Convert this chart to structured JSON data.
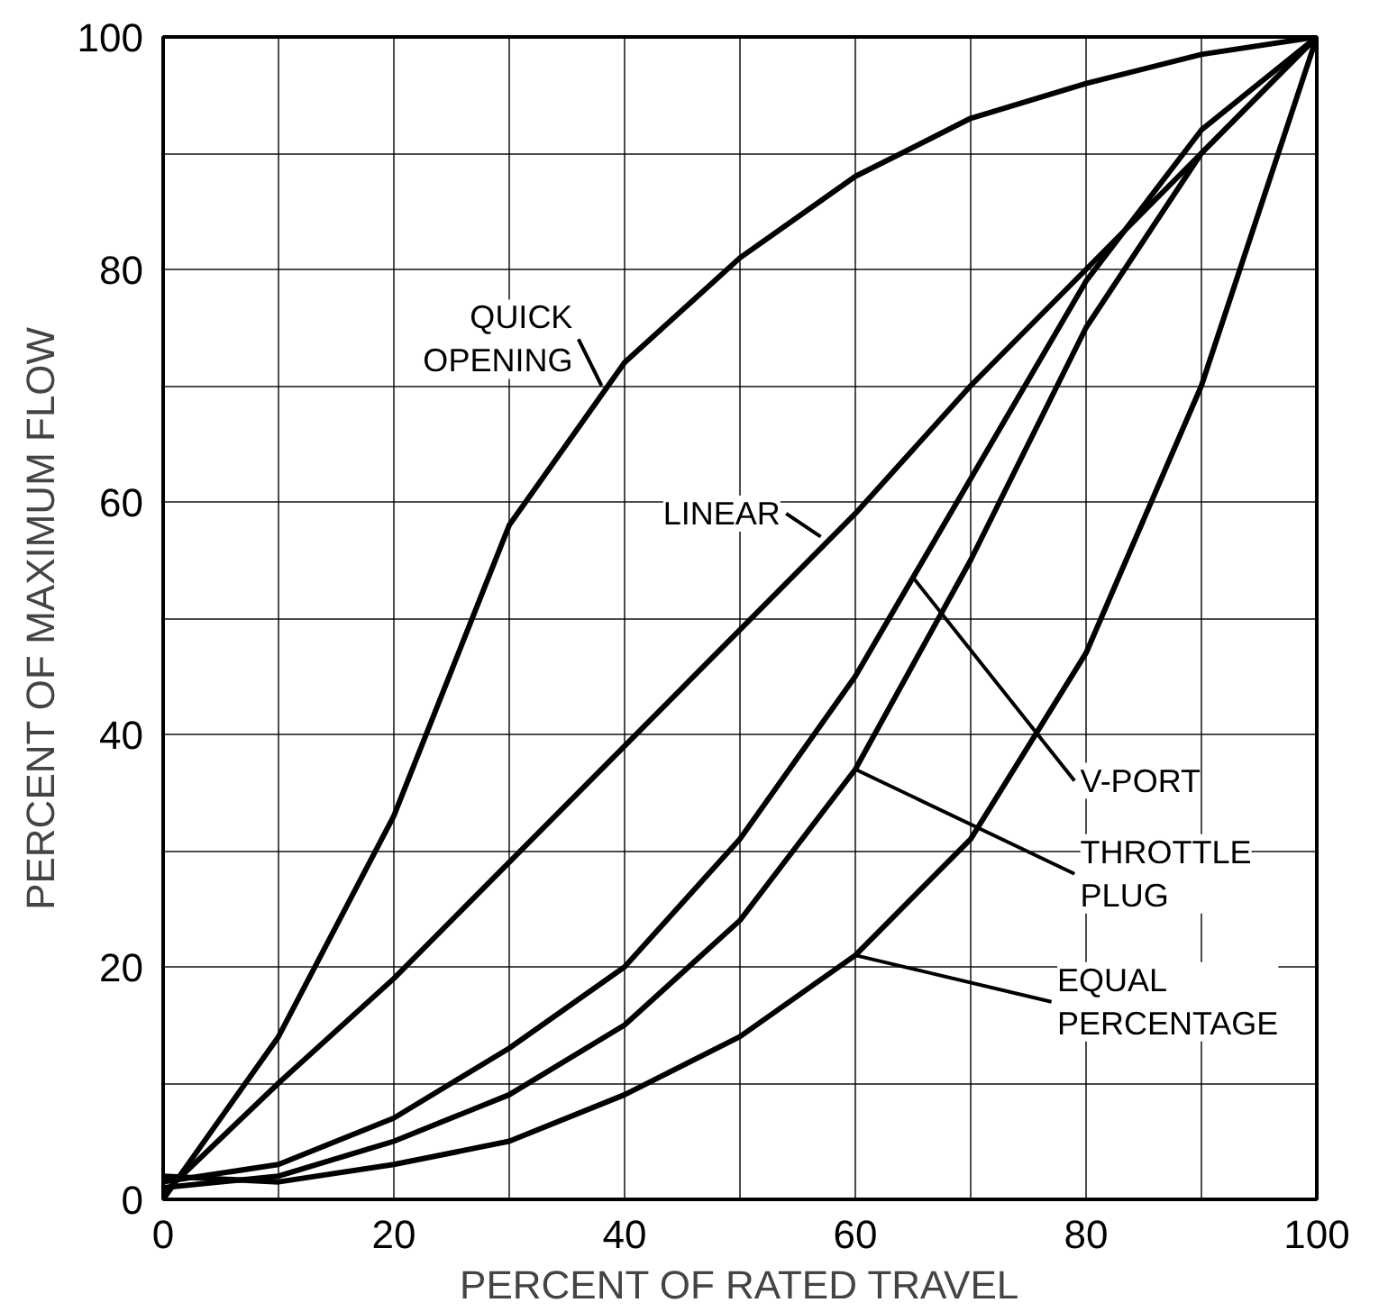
{
  "chart_data": {
    "type": "line",
    "xlabel": "PERCENT OF RATED TRAVEL",
    "ylabel": "PERCENT OF MAXIMUM FLOW",
    "xlim": [
      0,
      100
    ],
    "ylim": [
      0,
      100
    ],
    "xticks": [
      0,
      {
        "value": 10,
        "label": null
      },
      20,
      {
        "value": 30,
        "label": null
      },
      40,
      {
        "value": 50,
        "label": null
      },
      60,
      {
        "value": 70,
        "label": null
      },
      80,
      {
        "value": 90,
        "label": null
      },
      100
    ],
    "yticks": [
      0,
      {
        "value": 10,
        "label": null
      },
      20,
      {
        "value": 30,
        "label": null
      },
      40,
      {
        "value": 50,
        "label": null
      },
      60,
      {
        "value": 70,
        "label": null
      },
      80,
      {
        "value": 90,
        "label": null
      },
      100
    ],
    "grid": true,
    "marker": "none",
    "line_style": "solid",
    "x": [
      0,
      10,
      20,
      30,
      40,
      50,
      60,
      70,
      80,
      90,
      100
    ],
    "series": [
      {
        "color": "#000000",
        "values": [
          0,
          14,
          33,
          58,
          72,
          81,
          88,
          93,
          96,
          98.5,
          100
        ]
      },
      {
        "color": "#000000",
        "values": [
          0.5,
          10,
          19,
          29,
          39,
          49,
          59,
          70,
          80,
          90,
          100
        ]
      },
      {
        "color": "#000000",
        "values": [
          1.5,
          3,
          7,
          13,
          20,
          31,
          45,
          62,
          79,
          92,
          100
        ]
      },
      {
        "color": "#000000",
        "values": [
          1,
          2,
          5,
          9,
          15,
          24,
          37,
          55,
          75,
          90,
          100
        ]
      },
      {
        "color": "#000000",
        "values": [
          2,
          1.5,
          3,
          5,
          9,
          14,
          21,
          31,
          47,
          70,
          100
        ]
      }
    ],
    "annotations": [
      {
        "text": "QUICK\nOPENING",
        "x": 38,
        "y": 70
      },
      {
        "text": "LINEAR",
        "x": 57,
        "y": 57
      },
      {
        "text": "V-PORT",
        "x": 65,
        "y": 53.5
      },
      {
        "text": "THROTTLE\nPLUG",
        "x": 60,
        "y": 37
      },
      {
        "text": "EQUAL\nPERCENTAGE",
        "x": 60,
        "y": 21
      }
    ]
  }
}
